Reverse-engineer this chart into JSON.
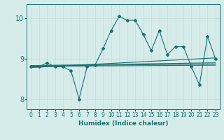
{
  "xlabel": "Humidex (Indice chaleur)",
  "background_color": "#d6ecea",
  "grid_color": "#c8dede",
  "line_color": "#1a7070",
  "xlim": [
    -0.5,
    23.5
  ],
  "ylim": [
    7.75,
    10.35
  ],
  "yticks": [
    8,
    9,
    10
  ],
  "xticks": [
    0,
    1,
    2,
    3,
    4,
    5,
    6,
    7,
    8,
    9,
    10,
    11,
    12,
    13,
    14,
    15,
    16,
    17,
    18,
    19,
    20,
    21,
    22,
    23
  ],
  "series": {
    "main": {
      "x": [
        0,
        1,
        2,
        3,
        4,
        5,
        6,
        7,
        8,
        9,
        10,
        11,
        12,
        13,
        14,
        15,
        16,
        17,
        18,
        19,
        20,
        21,
        22,
        23
      ],
      "y": [
        8.8,
        8.8,
        8.9,
        8.8,
        8.8,
        8.7,
        8.0,
        8.8,
        8.85,
        9.25,
        9.7,
        10.05,
        9.95,
        9.95,
        9.6,
        9.2,
        9.7,
        9.1,
        9.3,
        9.3,
        8.8,
        8.35,
        9.55,
        9.0
      ]
    },
    "line1": {
      "x": [
        0,
        23
      ],
      "y": [
        8.78,
        9.02
      ]
    },
    "line2": {
      "x": [
        0,
        23
      ],
      "y": [
        8.83,
        8.9
      ]
    },
    "line3": {
      "x": [
        0,
        23
      ],
      "y": [
        8.82,
        8.87
      ]
    },
    "line4": {
      "x": [
        0,
        23
      ],
      "y": [
        8.81,
        8.84
      ]
    }
  }
}
